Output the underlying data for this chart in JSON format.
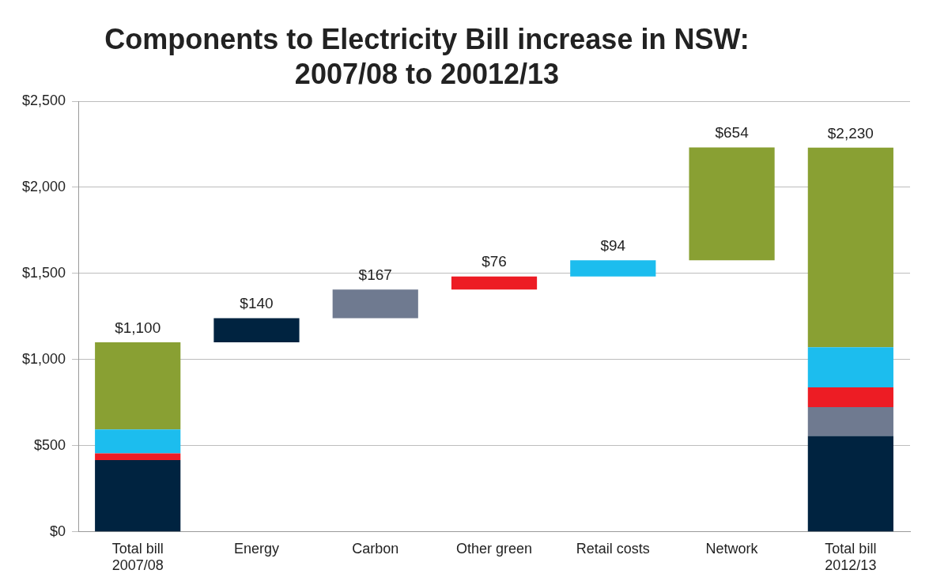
{
  "chart_data": {
    "type": "bar",
    "title": "Components to Electricity Bill increase in NSW: 2007/08 to 20012/13",
    "categories": [
      "Total bill\n2007/08",
      "Energy",
      "Carbon",
      "Other green",
      "Retail costs",
      "Network",
      "Total bill\n2012/13"
    ],
    "stacked": true,
    "series": [
      {
        "color": "#002340",
        "values": [
          417,
          140,
          null,
          null,
          null,
          null,
          557
        ],
        "base": [
          null,
          1100,
          null,
          null,
          null,
          null,
          null
        ],
        "value_labels": [
          null,
          "$140",
          null,
          null,
          null,
          null,
          null
        ]
      },
      {
        "color": "#6f7a90",
        "values": [
          0,
          null,
          167,
          null,
          null,
          null,
          167
        ],
        "base": [
          null,
          null,
          1240,
          null,
          null,
          null,
          null
        ],
        "value_labels": [
          null,
          null,
          "$167",
          null,
          null,
          null,
          null
        ]
      },
      {
        "color": "#ed1c24",
        "values": [
          39,
          null,
          null,
          76,
          null,
          null,
          115
        ],
        "base": [
          null,
          null,
          null,
          1407,
          null,
          null,
          null
        ],
        "value_labels": [
          null,
          null,
          null,
          "$76",
          null,
          null,
          null
        ]
      },
      {
        "color": "#1cbdee",
        "values": [
          139,
          null,
          null,
          null,
          94,
          null,
          233
        ],
        "base": [
          null,
          null,
          null,
          null,
          1483,
          null,
          null
        ],
        "value_labels": [
          null,
          null,
          null,
          null,
          "$94",
          null,
          null
        ]
      },
      {
        "color": "#89a033",
        "values": [
          505,
          null,
          null,
          null,
          null,
          654,
          1158
        ],
        "base": [
          null,
          null,
          null,
          null,
          null,
          1577,
          null
        ],
        "value_labels": [
          null,
          null,
          null,
          null,
          null,
          "$654",
          null
        ]
      }
    ],
    "totals": [
      "$1,100",
      null,
      null,
      null,
      null,
      null,
      "$2,230"
    ],
    "ylim": [
      0,
      2500
    ],
    "yticks": [
      {
        "value": 0,
        "label": "$0"
      },
      {
        "value": 500,
        "label": "$500"
      },
      {
        "value": 1000,
        "label": "$1,000"
      },
      {
        "value": 1500,
        "label": "$1,500"
      },
      {
        "value": 2000,
        "label": "$2,000"
      },
      {
        "value": 2500,
        "label": "$2,500"
      }
    ],
    "grid": "y",
    "legend": false
  }
}
